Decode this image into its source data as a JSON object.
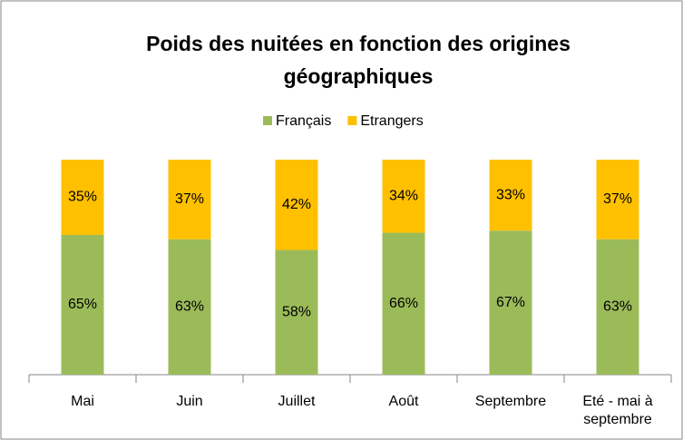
{
  "chart_data": {
    "type": "stacked-bar",
    "title": [
      "Poids des nuitées en fonction des origines",
      "géographiques"
    ],
    "categories": [
      "Mai",
      "Juin",
      "Juillet",
      "Août",
      "Septembre",
      "Eté - mai à septembre"
    ],
    "series": [
      {
        "name": "Français",
        "color": "#9bbb59",
        "values": [
          65,
          63,
          58,
          66,
          67,
          63
        ],
        "value_labels": [
          "65%",
          "63%",
          "58%",
          "66%",
          "67%",
          "63%"
        ]
      },
      {
        "name": "Etrangers",
        "color": "#ffc000",
        "values": [
          35,
          37,
          42,
          34,
          33,
          37
        ],
        "value_labels": [
          "35%",
          "37%",
          "42%",
          "34%",
          "33%",
          "37%"
        ]
      }
    ],
    "ylim": [
      0,
      100
    ],
    "legend": "top"
  }
}
